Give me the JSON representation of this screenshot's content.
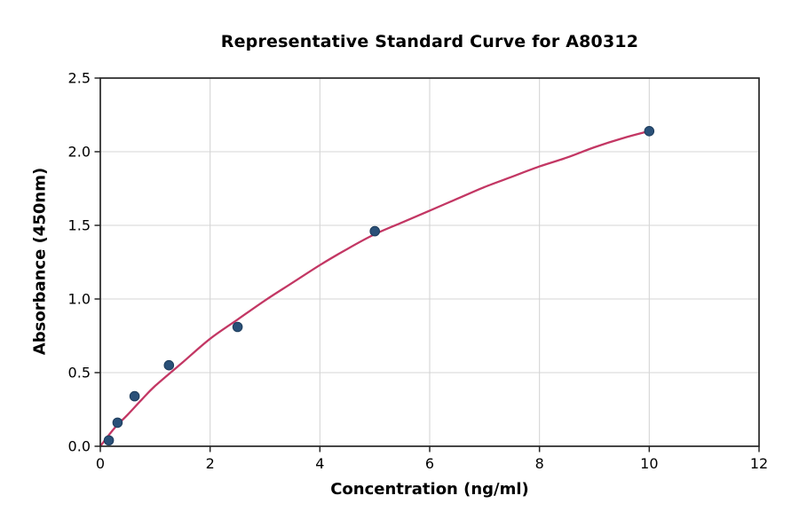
{
  "chart_data": {
    "type": "scatter",
    "title": "Representative Standard Curve for A80312",
    "xlabel": "Concentration (ng/ml)",
    "ylabel": "Absorbance (450nm)",
    "xlim": [
      0,
      12
    ],
    "ylim": [
      0,
      2.5
    ],
    "grid": true,
    "legend": "none",
    "x_ticks": [
      0,
      2,
      4,
      6,
      8,
      10,
      12
    ],
    "x_tick_labels": [
      "0",
      "2",
      "4",
      "6",
      "8",
      "10",
      "12"
    ],
    "y_ticks": [
      0,
      0.5,
      1,
      1.5,
      2,
      2.5
    ],
    "y_tick_labels": [
      "0.0",
      "0.5",
      "1.0",
      "1.5",
      "2.0",
      "2.5"
    ],
    "points": {
      "x": [
        0.156,
        0.313,
        0.625,
        1.25,
        2.5,
        5,
        10
      ],
      "y": [
        0.04,
        0.16,
        0.34,
        0.55,
        0.81,
        1.46,
        2.14
      ]
    },
    "fit_curve": {
      "x": [
        0,
        0.25,
        0.5,
        0.75,
        1,
        1.5,
        2,
        2.5,
        3,
        3.5,
        4,
        4.5,
        5,
        5.5,
        6,
        6.5,
        7,
        7.5,
        8,
        8.5,
        9,
        9.5,
        10
      ],
      "y": [
        0,
        0.12,
        0.215,
        0.315,
        0.41,
        0.57,
        0.73,
        0.86,
        0.99,
        1.11,
        1.23,
        1.34,
        1.44,
        1.52,
        1.6,
        1.68,
        1.76,
        1.83,
        1.9,
        1.96,
        2.03,
        2.09,
        2.14
      ]
    },
    "colors": {
      "curve": "#c33764",
      "points": "#2a5078",
      "points_edge": "#1d3c5c",
      "grid": "#d5d5d5",
      "axis": "#262626",
      "text": "#000000",
      "background": "#ffffff"
    }
  }
}
